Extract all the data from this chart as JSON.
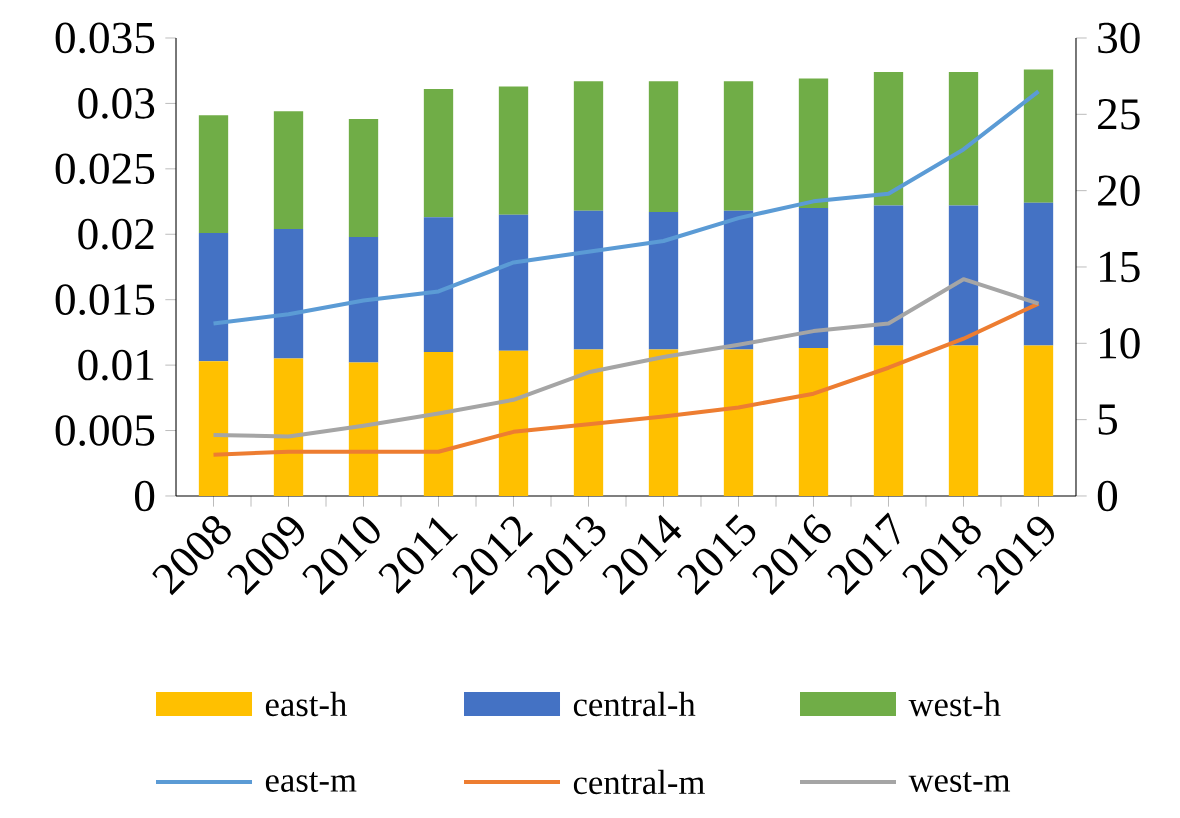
{
  "chart_data": {
    "type": "bar",
    "stacked": true,
    "legend": "bottom",
    "categories": [
      "2008",
      "2009",
      "2010",
      "2011",
      "2012",
      "2013",
      "2014",
      "2015",
      "2016",
      "2017",
      "2018",
      "2019"
    ],
    "ylim": [
      0,
      0.035
    ],
    "yticks": [
      0,
      0.005,
      0.01,
      0.015,
      0.02,
      0.025,
      0.03,
      0.035
    ],
    "y2lim": [
      0,
      30
    ],
    "y2ticks": [
      0,
      5,
      10,
      15,
      20,
      25,
      30
    ],
    "series": [
      {
        "name": "east-h",
        "color": "#ffc000",
        "values": [
          0.0103,
          0.0105,
          0.0102,
          0.011,
          0.0111,
          0.0112,
          0.0112,
          0.0112,
          0.0113,
          0.0115,
          0.0115,
          0.0115
        ]
      },
      {
        "name": "central-h",
        "color": "#4472c4",
        "values": [
          0.0098,
          0.0099,
          0.0096,
          0.0103,
          0.0104,
          0.0106,
          0.0105,
          0.0106,
          0.0107,
          0.0107,
          0.0107,
          0.0109
        ]
      },
      {
        "name": "west-h",
        "color": "#70ad47",
        "values": [
          0.009,
          0.009,
          0.009,
          0.0098,
          0.0098,
          0.0099,
          0.01,
          0.0099,
          0.0099,
          0.0102,
          0.0102,
          0.0102
        ]
      },
      {
        "name": "east-m",
        "type": "line",
        "axis": "y2",
        "color": "#5b9bd5",
        "values": [
          11.3,
          11.9,
          12.8,
          13.4,
          15.3,
          16.0,
          16.7,
          18.2,
          19.3,
          19.8,
          22.7,
          26.5
        ]
      },
      {
        "name": "central-m",
        "type": "line",
        "axis": "y2",
        "color": "#ed7d31",
        "values": [
          2.7,
          2.9,
          2.9,
          2.9,
          4.2,
          4.7,
          5.2,
          5.8,
          6.7,
          8.4,
          10.3,
          12.6
        ]
      },
      {
        "name": "west-m",
        "type": "line",
        "axis": "y2",
        "color": "#a5a5a5",
        "values": [
          4.0,
          3.9,
          4.6,
          5.4,
          6.3,
          8.1,
          9.1,
          9.9,
          10.8,
          11.3,
          14.2,
          12.6
        ]
      }
    ]
  }
}
